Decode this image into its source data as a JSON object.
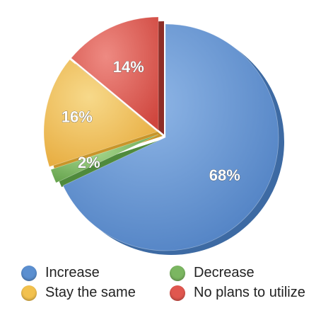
{
  "chart_data": {
    "type": "pie",
    "title": "",
    "slices": [
      {
        "name": "Increase",
        "value": 68,
        "label": "68%",
        "color": "#5b8fd0",
        "side": "#3d6aa3"
      },
      {
        "name": "Decrease",
        "value": 2,
        "label": "2%",
        "color": "#7bb661",
        "side": "#4f8a3c"
      },
      {
        "name": "Stay the same",
        "value": 16,
        "label": "16%",
        "color": "#f2c14e",
        "side": "#c8952a"
      },
      {
        "name": "No plans to utilize",
        "value": 14,
        "label": "14%",
        "color": "#e0574f",
        "side": "#8e2e27"
      }
    ],
    "legend_position": "bottom"
  },
  "legend": {
    "increase": "Increase",
    "decrease": "Decrease",
    "stay_same": "Stay the same",
    "no_plans": "No plans to utilize"
  }
}
